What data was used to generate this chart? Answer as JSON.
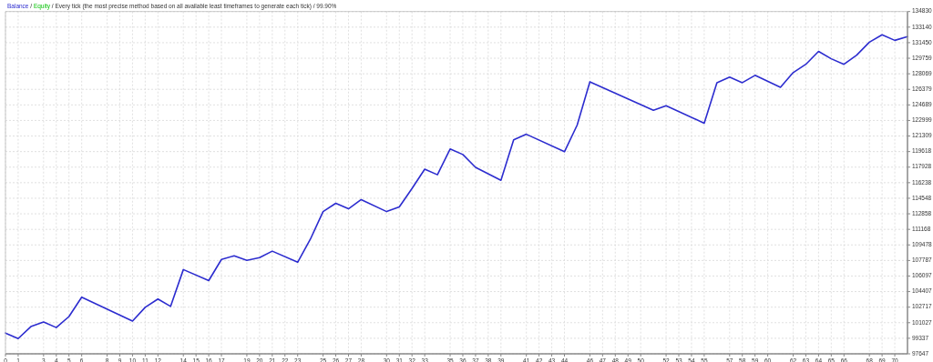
{
  "chart_data": {
    "type": "line",
    "title": "Every tick (the most precise method based on all available least timeframes to generate each tick) / 99.90%",
    "legend_title": "/",
    "x": [
      0,
      1,
      2,
      3,
      4,
      5,
      6,
      10,
      11,
      12,
      13,
      14,
      16,
      17,
      18,
      19,
      20,
      21,
      23,
      24,
      25,
      26,
      27,
      28,
      30,
      31,
      32,
      33,
      34,
      35,
      36,
      37,
      39,
      40,
      41,
      44,
      45,
      46,
      51,
      52,
      55,
      56,
      57,
      58,
      59,
      61,
      62,
      63,
      64,
      65,
      66,
      67,
      68,
      69,
      70,
      71
    ],
    "series": [
      {
        "name": "Balance",
        "color": "#2c2ccf",
        "values": [
          99900,
          99300,
          100600,
          101100,
          100500,
          101700,
          103800,
          101200,
          102700,
          103600,
          102800,
          106800,
          105600,
          107900,
          108300,
          107800,
          108100,
          108800,
          107600,
          110100,
          113100,
          114000,
          113400,
          114400,
          113100,
          113600,
          115600,
          117700,
          117100,
          119900,
          119300,
          117900,
          116500,
          120900,
          121500,
          119600,
          122500,
          127200,
          124100,
          124600,
          122700,
          127100,
          127700,
          127100,
          127900,
          126600,
          128200,
          129100,
          130500,
          129700,
          129100,
          130100,
          131500,
          132300,
          131700,
          132100
        ]
      },
      {
        "name": "Equity",
        "color": "#00c000",
        "values": [
          null,
          null,
          null,
          null,
          null,
          null,
          null,
          null,
          null,
          null,
          null,
          null,
          null,
          null,
          null,
          null,
          null,
          null,
          null,
          null,
          null,
          null,
          null,
          null,
          null,
          null,
          null,
          null,
          null,
          null,
          null,
          null,
          null,
          null,
          null,
          null,
          null,
          null,
          null,
          null,
          null,
          null,
          null,
          null,
          null,
          null,
          null,
          null,
          null,
          null,
          null,
          null,
          null,
          null,
          null,
          null
        ]
      }
    ],
    "xlim": [
      0,
      71
    ],
    "xticks": [
      0,
      1,
      3,
      4,
      5,
      6,
      8,
      9,
      10,
      11,
      12,
      14,
      15,
      16,
      17,
      19,
      20,
      21,
      22,
      23,
      25,
      26,
      27,
      28,
      30,
      31,
      32,
      33,
      35,
      36,
      37,
      38,
      39,
      41,
      42,
      43,
      44,
      46,
      47,
      48,
      49,
      50,
      52,
      53,
      54,
      55,
      57,
      58,
      59,
      60,
      62,
      63,
      64,
      65,
      66,
      68,
      69,
      70
    ],
    "ylim": [
      97647,
      134830
    ],
    "yticks": [
      97647,
      99337,
      101027,
      102717,
      104407,
      106097,
      107787,
      109478,
      111168,
      112858,
      114548,
      116238,
      117928,
      119618,
      121309,
      122999,
      124689,
      126379,
      128069,
      129759,
      131450,
      133140,
      134830
    ],
    "grid": true,
    "legend": "top left",
    "line_style": "solid",
    "marker": "none"
  }
}
